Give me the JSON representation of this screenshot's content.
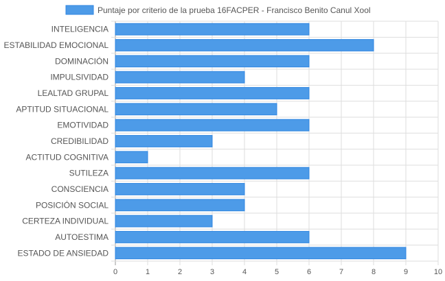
{
  "chart_data": {
    "type": "bar",
    "orientation": "horizontal",
    "series": [
      {
        "name": "Puntaje por criterio de la prueba 16FACPER - Francisco Benito Canul Xool",
        "values": [
          6,
          8,
          6,
          4,
          6,
          5,
          6,
          3,
          1,
          6,
          4,
          4,
          3,
          6,
          9
        ]
      }
    ],
    "categories": [
      "INTELIGENCIA",
      "ESTABILIDAD EMOCIONAL",
      "DOMINACIÓN",
      "IMPULSIVIDAD",
      "LEALTAD GRUPAL",
      "APTITUD SITUACIONAL",
      "EMOTIVIDAD",
      "CREDIBILIDAD",
      "ACTITUD COGNITIVA",
      "SUTILEZA",
      "CONSCIENCIA",
      "POSICIÓN SOCIAL",
      "CERTEZA INDIVIDUAL",
      "AUTOESTIMA",
      "ESTADO DE ANSIEDAD"
    ],
    "xlim": [
      0,
      10
    ],
    "xticks": [
      "0",
      "1",
      "2",
      "3",
      "4",
      "5",
      "6",
      "7",
      "8",
      "9",
      "10"
    ],
    "grid": true,
    "legend_position": "top-center",
    "colors": {
      "bar_fill": "#4d9be8",
      "bar_stroke": "#2f86e0",
      "grid": "#dddddd",
      "axis": "#999999"
    }
  }
}
